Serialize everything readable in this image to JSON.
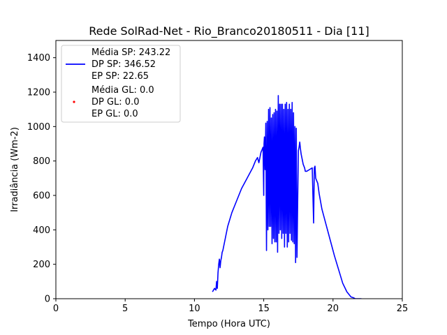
{
  "chart_data": {
    "type": "line",
    "title": "Rede SolRad-Net - Rio_Branco20180511 - Dia [11]",
    "xlabel": "Tempo (Hora UTC)",
    "ylabel": "Irradiância (Wm-2)",
    "xlim": [
      0,
      25
    ],
    "ylim": [
      0,
      1500
    ],
    "xticks": [
      0,
      5,
      10,
      15,
      20,
      25
    ],
    "yticks": [
      0,
      200,
      400,
      600,
      800,
      1000,
      1200,
      1400
    ],
    "grid": false,
    "legend_position": "top-left",
    "colors": {
      "sp": "#0000ff",
      "gl": "#ff0000"
    },
    "series": [
      {
        "name": "SP",
        "style": "line",
        "legend_lines": [
          "Média SP: 243.22",
          "DP SP: 346.52",
          "EP SP: 22.65"
        ],
        "x": [
          11.3,
          11.45,
          11.55,
          11.6,
          11.65,
          11.7,
          11.75,
          11.8,
          11.85,
          11.9,
          11.95,
          12.0,
          12.05,
          12.1,
          12.2,
          12.4,
          12.7,
          13.0,
          13.4,
          13.8,
          14.2,
          14.4,
          14.55,
          14.65,
          14.7,
          14.8,
          14.9,
          14.95,
          15.0,
          15.02,
          15.05,
          15.1,
          15.15,
          15.2,
          15.25,
          15.3,
          15.35,
          15.4,
          15.45,
          15.5,
          15.55,
          15.6,
          15.65,
          15.7,
          15.75,
          15.8,
          15.85,
          15.9,
          15.95,
          16.0,
          16.05,
          16.1,
          16.15,
          16.2,
          16.25,
          16.3,
          16.35,
          16.4,
          16.45,
          16.5,
          16.55,
          16.6,
          16.65,
          16.7,
          16.75,
          16.8,
          16.85,
          16.9,
          16.95,
          17.0,
          17.05,
          17.1,
          17.15,
          17.2,
          17.25,
          17.3,
          17.35,
          17.4,
          17.45,
          17.5,
          17.55,
          17.6,
          17.65,
          17.7,
          17.75,
          17.8,
          17.85,
          17.9,
          17.95,
          18.0,
          18.1,
          18.3,
          18.5,
          18.6,
          18.65,
          18.7,
          18.75,
          18.8,
          18.85,
          18.9,
          19.0,
          19.2,
          19.5,
          19.8,
          20.1,
          20.4,
          20.7,
          21.0,
          21.3,
          21.5,
          21.6,
          21.65,
          21.7,
          21.8,
          21.9,
          22.0,
          22.05
        ],
        "y": [
          40,
          60,
          50,
          100,
          60,
          150,
          200,
          230,
          180,
          220,
          240,
          270,
          280,
          300,
          340,
          420,
          500,
          560,
          640,
          700,
          760,
          800,
          820,
          790,
          810,
          850,
          870,
          880,
          600,
          900,
          940,
          750,
          1020,
          280,
          1030,
          400,
          1100,
          420,
          1110,
          420,
          1050,
          320,
          1070,
          350,
          1080,
          330,
          1100,
          330,
          1090,
          270,
          1180,
          380,
          1130,
          400,
          1130,
          350,
          1130,
          380,
          1100,
          300,
          1130,
          380,
          1140,
          300,
          1100,
          330,
          1130,
          380,
          1100,
          340,
          1140,
          330,
          1080,
          320,
          1000,
          210,
          990,
          240,
          560,
          860,
          880,
          910,
          870,
          840,
          820,
          800,
          780,
          770,
          760,
          740,
          740,
          750,
          760,
          440,
          760,
          770,
          700,
          690,
          680,
          670,
          610,
          520,
          430,
          340,
          250,
          170,
          90,
          40,
          10,
          5,
          0,
          0,
          0,
          0,
          0,
          0,
          0
        ]
      },
      {
        "name": "GL",
        "style": "points",
        "legend_lines": [
          "Média GL: 0.0",
          "DP GL: 0.0",
          "EP GL: 0.0"
        ],
        "x": [],
        "y": []
      }
    ]
  }
}
